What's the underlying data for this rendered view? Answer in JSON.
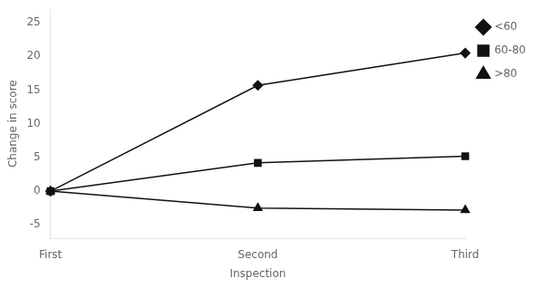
{
  "chart_data": {
    "type": "line",
    "categories": [
      "First",
      "Second",
      "Third"
    ],
    "series": [
      {
        "name": "<60",
        "color": "#111111",
        "marker": "diamond",
        "values": [
          0,
          15.7,
          20.5
        ]
      },
      {
        "name": "60-80",
        "color": "#111111",
        "marker": "square",
        "values": [
          0,
          4.2,
          5.2
        ]
      },
      {
        "name": ">80",
        "color": "#111111",
        "marker": "triangle",
        "values": [
          0,
          -2.5,
          -2.8
        ]
      }
    ],
    "xlabel": "Inspection",
    "ylabel": "Change in score",
    "ylim": [
      -7,
      27
    ],
    "yticks": [
      -5,
      0,
      5,
      10,
      15,
      20,
      25
    ],
    "grid": false,
    "legend": "right"
  }
}
